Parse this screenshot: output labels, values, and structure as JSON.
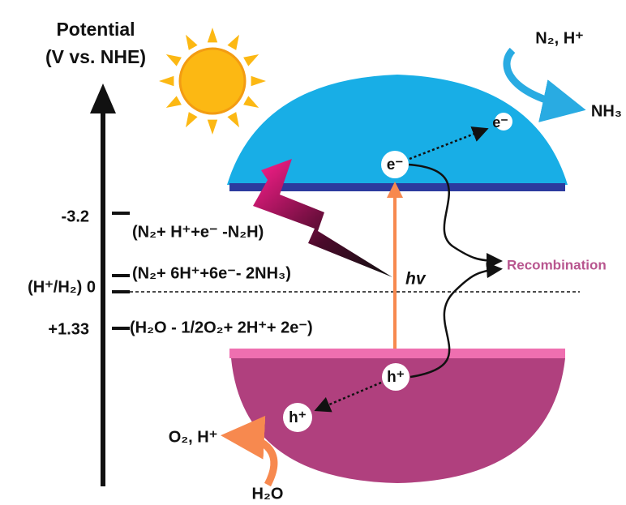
{
  "axis": {
    "title": [
      "Potential",
      "(V vs. NHE)"
    ],
    "levels": [
      "-3.2",
      "(H⁺/H₂) 0",
      "+1.33"
    ]
  },
  "reactions": [
    "(N₂+ H⁺+e⁻ -N₂H)",
    "(N₂+ 6H⁺+6e⁻- 2NH₃)",
    "(H₂O - 1/2O₂+ 2H⁺+ 2e⁻)"
  ],
  "photon": "hv",
  "recombination": "Recombination",
  "electron_band": "e⁻",
  "electron_surface": "e⁻",
  "hole_band": "h⁺",
  "hole_surface": "h⁺",
  "reduction": {
    "reactants": "N₂, H⁺",
    "product": "NH₃"
  },
  "oxidation": {
    "product": "O₂, H⁺",
    "reactant": "H₂O"
  }
}
